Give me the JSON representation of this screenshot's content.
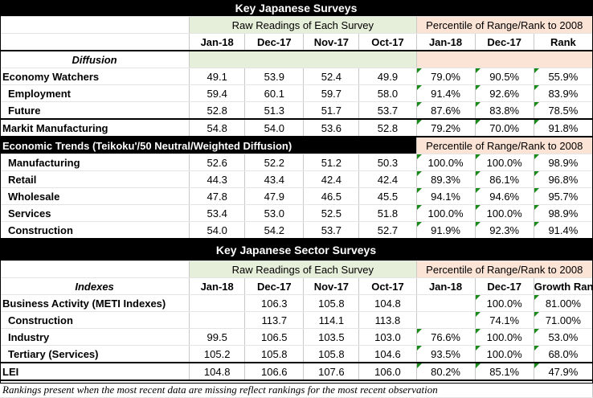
{
  "table1": {
    "title": "Key Japanese Surveys",
    "raw_header": "Raw Readings of Each Survey",
    "pct_header": "Percentile of Range/Rank to 2008",
    "columns": [
      "Jan-18",
      "Dec-17",
      "Nov-17",
      "Oct-17",
      "Jan-18",
      "Dec-17",
      "Rank"
    ],
    "section_label": "Diffusion",
    "rows": [
      {
        "label": "Economy Watchers",
        "values": [
          "49.1",
          "53.9",
          "52.4",
          "49.9",
          "79.0%",
          "90.5%",
          "55.9%"
        ]
      },
      {
        "label": "Employment",
        "values": [
          "59.4",
          "60.1",
          "59.7",
          "58.0",
          "91.4%",
          "92.6%",
          "83.9%"
        ]
      },
      {
        "label": "Future",
        "values": [
          "52.8",
          "51.3",
          "51.7",
          "53.7",
          "87.6%",
          "83.8%",
          "78.5%"
        ]
      },
      {
        "label": "Markit Manufacturing",
        "values": [
          "54.8",
          "54.0",
          "53.6",
          "52.8",
          "79.2%",
          "70.0%",
          "91.8%"
        ]
      }
    ],
    "trends_label": "Economic Trends (Teikoku'/50 Neutral/Weighted Diffusion)",
    "trends_pct_header": "Percentile of Range/Rank to 2008",
    "trends_rows": [
      {
        "label": "Manufacturing",
        "values": [
          "52.6",
          "52.2",
          "51.2",
          "50.3",
          "100.0%",
          "100.0%",
          "98.9%"
        ]
      },
      {
        "label": "Retail",
        "values": [
          "44.3",
          "43.4",
          "42.4",
          "42.4",
          "89.3%",
          "86.1%",
          "96.8%"
        ]
      },
      {
        "label": "Wholesale",
        "values": [
          "47.8",
          "47.9",
          "46.5",
          "45.5",
          "94.1%",
          "94.6%",
          "95.7%"
        ]
      },
      {
        "label": "Services",
        "values": [
          "53.4",
          "53.0",
          "52.5",
          "51.8",
          "100.0%",
          "100.0%",
          "98.9%"
        ]
      },
      {
        "label": "Construction",
        "values": [
          "54.0",
          "54.2",
          "53.7",
          "52.7",
          "91.9%",
          "92.3%",
          "91.4%"
        ]
      }
    ]
  },
  "table2": {
    "title": "Key Japanese Sector Surveys",
    "raw_header": "Raw Readings of Each Survey",
    "pct_header": "Percentile of Range/Rank to 2008",
    "section_label": "Indexes",
    "columns": [
      "Jan-18",
      "Dec-17",
      "Nov-17",
      "Oct-17",
      "Jan-18",
      "Dec-17",
      "Growth Ran"
    ],
    "rows": [
      {
        "label": "Business Activity (METI Indexes)",
        "values": [
          "",
          "106.3",
          "105.8",
          "104.8",
          "",
          "100.0%",
          "81.00%"
        ]
      },
      {
        "label": "Construction",
        "values": [
          "",
          "113.7",
          "114.1",
          "113.8",
          "",
          "74.1%",
          "71.00%"
        ]
      },
      {
        "label": "Industry",
        "values": [
          "99.5",
          "106.5",
          "103.5",
          "103.0",
          "76.6%",
          "100.0%",
          "53.0%"
        ]
      },
      {
        "label": "Tertiary (Services)",
        "values": [
          "105.2",
          "105.8",
          "105.8",
          "104.6",
          "93.5%",
          "100.0%",
          "68.0%"
        ]
      },
      {
        "label": "LEI",
        "values": [
          "104.8",
          "106.6",
          "107.6",
          "106.0",
          "80.2%",
          "85.1%",
          "47.9%"
        ]
      }
    ]
  },
  "footnote": "Rankings present when the most recent data are missing reflect rankings for the most recent observation"
}
